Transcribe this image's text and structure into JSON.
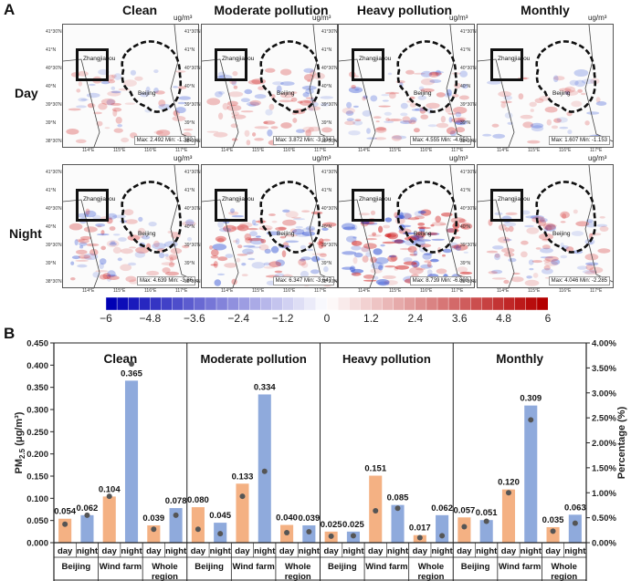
{
  "panel_a": {
    "label": "A",
    "unit": "ug/m³",
    "columns": [
      "Clean",
      "Moderate pollution",
      "Heavy pollution",
      "Monthly"
    ],
    "rows": [
      "Day",
      "Night"
    ],
    "place_zhangjiakou": "Zhangjiakou",
    "place_beijing": "Beijing",
    "lat_ticks": [
      "41°30′N",
      "41°N",
      "40°30′N",
      "40°N",
      "39°30′N",
      "39°N",
      "38°30′N"
    ],
    "lon_ticks": [
      "114°E",
      "115°E",
      "116°E",
      "117°E"
    ],
    "maps": [
      {
        "max": "2.492",
        "min": "-1.382"
      },
      {
        "max": "3.872",
        "min": "-3.334"
      },
      {
        "max": "4.555",
        "min": "-4.652"
      },
      {
        "max": "1.607",
        "min": "-1.153"
      },
      {
        "max": "4.639",
        "min": "-3.86"
      },
      {
        "max": "6.347",
        "min": "-3.647"
      },
      {
        "max": "8.739",
        "min": "-6.803"
      },
      {
        "max": "4.046",
        "min": "-2.285"
      }
    ],
    "colorbar": {
      "range": [
        -6,
        6
      ],
      "ticks": [
        "−6",
        "−4.8",
        "−3.6",
        "−2.4",
        "−1.2",
        "0",
        "1.2",
        "2.4",
        "3.6",
        "4.8",
        "6"
      ],
      "low_color": "#0000b4",
      "high_color": "#b40000"
    }
  },
  "chart_data": {
    "label": "B",
    "type": "bar",
    "ylabel": "PM2.5 (μg/m³)",
    "ylabel_main": "PM",
    "ylabel_sub": "2.5",
    "ylabel_unit": " (μg/m³)",
    "ylabel_right": "Percentage (%)",
    "ylim": [
      0,
      0.45
    ],
    "yticks": [
      "0.000",
      "0.050",
      "0.100",
      "0.150",
      "0.200",
      "0.250",
      "0.300",
      "0.350",
      "0.400",
      "0.450"
    ],
    "ylim_right": [
      0,
      4
    ],
    "yticks_right": [
      "0.00%",
      "0.50%",
      "1.00%",
      "1.50%",
      "2.00%",
      "2.50%",
      "3.00%",
      "3.50%",
      "4.00%"
    ],
    "day_color": "#f4b183",
    "night_color": "#8faadc",
    "dot_color": "#555555",
    "regions": [
      "Beijing",
      "Wind farm",
      "Whole region"
    ],
    "region_labels": [
      "Beijing",
      "Wind farm",
      "Whole\nregion"
    ],
    "times": [
      "day",
      "night"
    ],
    "groups": [
      {
        "name": "Clean",
        "values": [
          0.054,
          0.062,
          0.104,
          0.365,
          0.039,
          0.078
        ],
        "labels": [
          "0.054",
          "0.062",
          "0.104",
          "0.365",
          "0.039",
          "0.078"
        ],
        "percent": [
          0.37,
          0.55,
          0.93,
          3.58,
          0.27,
          0.55
        ]
      },
      {
        "name": "Moderate pollution",
        "values": [
          0.08,
          0.045,
          0.133,
          0.334,
          0.04,
          0.039
        ],
        "labels": [
          "0.080",
          "0.045",
          "0.133",
          "0.334",
          "0.040",
          "0.039"
        ],
        "percent": [
          0.27,
          0.18,
          0.93,
          1.43,
          0.2,
          0.22
        ]
      },
      {
        "name": "Heavy pollution",
        "values": [
          0.025,
          0.025,
          0.151,
          0.085,
          0.017,
          0.062
        ],
        "labels": [
          "0.025",
          "0.025",
          "0.151",
          "0.085",
          "0.017",
          "0.062"
        ],
        "percent": [
          0.13,
          0.14,
          0.64,
          0.69,
          0.1,
          0.14
        ]
      },
      {
        "name": "Monthly",
        "values": [
          0.057,
          0.051,
          0.12,
          0.309,
          0.035,
          0.063
        ],
        "labels": [
          "0.057",
          "0.051",
          "0.120",
          "0.309",
          "0.035",
          "0.063"
        ],
        "percent": [
          0.32,
          0.43,
          1.0,
          2.46,
          0.23,
          0.39
        ]
      }
    ]
  }
}
